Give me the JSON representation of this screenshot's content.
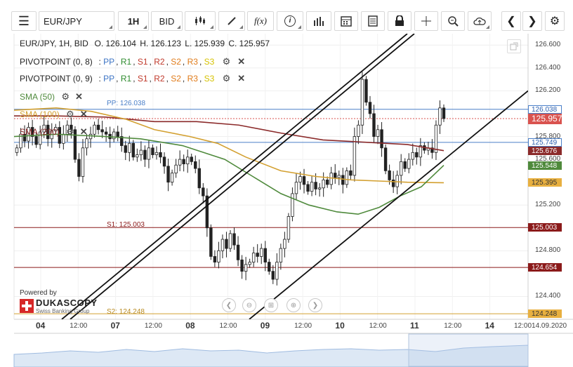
{
  "toolbar": {
    "symbol": "EUR/JPY",
    "timeframe": "1H",
    "price_type": "BID",
    "fx_label": "f(x)",
    "icons": [
      "menu-icon",
      "candle-type-icon",
      "draw-icon",
      "function-icon",
      "info-icon",
      "bar-chart-icon",
      "calendar-icon",
      "notes-icon",
      "lock-icon",
      "crosshair-icon",
      "zoom-icon",
      "cloud-upload-icon",
      "prev-icon",
      "next-icon",
      "settings-icon"
    ]
  },
  "ohlc": {
    "instrument": "EUR/JPY, 1H, BID",
    "o": "O. 126.104",
    "h": "H. 126.123",
    "l": "L. 125.939",
    "c": "C. 125.957"
  },
  "pivot_legends": [
    {
      "name": "PIVOTPOINT (0, 8)",
      "items": [
        "PP",
        "R1",
        "S1",
        "R2",
        "S2",
        "R3",
        "S3"
      ]
    },
    {
      "name": "PIVOTPOINT (0, 9)",
      "items": [
        "PP",
        "R1",
        "S1",
        "R2",
        "S2",
        "R3",
        "S3"
      ]
    }
  ],
  "sma_legends": [
    {
      "label": "SMA (50)",
      "color": "#4f8a3c"
    },
    {
      "label": "SMA (100)",
      "color": "#d3a030"
    },
    {
      "label": "SMA (200)",
      "color": "#8b2a2a"
    }
  ],
  "pivot_lines": {
    "pp": {
      "label": "PP: 126.038",
      "value": 126.038,
      "color": "#4a7fc8"
    },
    "s1": {
      "label": "S1: 125.003",
      "value": 125.003,
      "color": "#8b1a1a"
    },
    "s2": {
      "label": "S2: 124.248",
      "value": 124.248,
      "color": "#d3a030"
    },
    "pp_prev": {
      "value": 125.749,
      "color": "#4a7fc8"
    },
    "s1_prev": {
      "value": 124.654,
      "color": "#8b1a1a"
    }
  },
  "y_flags": [
    {
      "text": "126.038",
      "value": 126.038,
      "bg": "#ffffff",
      "fg": "#2a5fb0",
      "border": "#4a7fc8"
    },
    {
      "text": "125.957",
      "value": 125.957,
      "bg": "#d9534f",
      "fg": "#ffffff",
      "border": "#d9534f"
    },
    {
      "text": "125.749",
      "value": 125.749,
      "bg": "#ffffff",
      "fg": "#2a5fb0",
      "border": "#4a7fc8"
    },
    {
      "text": "125.676",
      "value": 125.676,
      "bg": "#8b2a2a",
      "fg": "#ffffff",
      "border": "#8b2a2a"
    },
    {
      "text": "125.548",
      "value": 125.548,
      "bg": "#4f8a3c",
      "fg": "#ffffff",
      "border": "#4f8a3c"
    },
    {
      "text": "125.395",
      "value": 125.395,
      "bg": "#e8b040",
      "fg": "#333333",
      "border": "#e8b040"
    },
    {
      "text": "125.003",
      "value": 125.003,
      "bg": "#8b1a1a",
      "fg": "#ffffff",
      "border": "#8b1a1a"
    },
    {
      "text": "124.654",
      "value": 124.654,
      "bg": "#8b1a1a",
      "fg": "#ffffff",
      "border": "#8b1a1a"
    },
    {
      "text": "124.248",
      "value": 124.248,
      "bg": "#e8b040",
      "fg": "#333333",
      "border": "#e8b040"
    }
  ],
  "logo": {
    "powered": "Powered by",
    "brand": "DUKASCOPY",
    "sub": "Swiss Banking Group"
  },
  "timestamp": "12:0014.09.2020",
  "chart_data": {
    "type": "candlestick",
    "ylim": [
      124.2,
      126.7
    ],
    "y_ticks": [
      "126.600",
      "126.400",
      "126.200",
      "125.800",
      "125.600",
      "125.200",
      "124.800",
      "124.400"
    ],
    "y_tick_values": [
      126.6,
      126.4,
      126.2,
      125.8,
      125.6,
      125.2,
      124.8,
      124.4
    ],
    "x_ticks": [
      {
        "label": "04",
        "day": true
      },
      {
        "label": "12:00",
        "day": false
      },
      {
        "label": "07",
        "day": true
      },
      {
        "label": "12:00",
        "day": false
      },
      {
        "label": "08",
        "day": true
      },
      {
        "label": "12:00",
        "day": false
      },
      {
        "label": "09",
        "day": true
      },
      {
        "label": "12:00",
        "day": false
      },
      {
        "label": "10",
        "day": true
      },
      {
        "label": "12:00",
        "day": false
      },
      {
        "label": "11",
        "day": true
      },
      {
        "label": "12:00",
        "day": false
      },
      {
        "label": "14",
        "day": true
      }
    ],
    "closes": [
      125.7,
      125.82,
      125.76,
      125.88,
      125.8,
      125.73,
      125.84,
      125.9,
      125.78,
      125.85,
      125.88,
      125.74,
      125.82,
      125.9,
      125.86,
      125.6,
      125.45,
      125.7,
      125.78,
      125.82,
      125.9,
      125.86,
      125.84,
      125.82,
      125.78,
      125.84,
      125.8,
      125.72,
      125.66,
      125.74,
      125.62,
      125.64,
      125.68,
      125.6,
      125.7,
      125.64,
      125.66,
      125.62,
      125.54,
      125.4,
      125.48,
      125.55,
      125.6,
      125.56,
      125.62,
      125.58,
      125.52,
      125.35,
      125.28,
      125.0,
      124.75,
      124.7,
      124.8,
      124.9,
      124.82,
      124.95,
      124.85,
      124.72,
      124.62,
      124.68,
      124.7,
      124.78,
      124.75,
      124.82,
      124.7,
      124.62,
      124.55,
      124.7,
      124.82,
      124.9,
      125.1,
      125.3,
      125.4,
      125.45,
      125.38,
      125.32,
      125.4,
      125.34,
      125.35,
      125.42,
      125.38,
      125.48,
      125.44,
      125.46,
      125.38,
      125.5,
      125.46,
      125.8,
      125.9,
      126.3,
      126.1,
      126.0,
      125.8,
      125.86,
      125.7,
      125.5,
      125.42,
      125.36,
      125.46,
      125.58,
      125.52,
      125.6,
      125.66,
      125.62,
      125.72,
      125.68,
      125.7,
      125.66,
      125.9,
      126.05,
      125.957
    ],
    "sma50": [
      [
        20,
        125.8
      ],
      [
        80,
        125.82
      ],
      [
        150,
        125.8
      ],
      [
        200,
        125.78
      ],
      [
        260,
        125.72
      ],
      [
        320,
        125.6
      ],
      [
        360,
        125.45
      ],
      [
        400,
        125.3
      ],
      [
        440,
        125.2
      ],
      [
        480,
        125.14
      ],
      [
        510,
        125.12
      ],
      [
        540,
        125.18
      ],
      [
        570,
        125.28
      ],
      [
        600,
        125.36
      ],
      [
        632,
        125.548
      ]
    ],
    "sma100": [
      [
        20,
        126.03
      ],
      [
        80,
        126.05
      ],
      [
        130,
        126.02
      ],
      [
        180,
        125.95
      ],
      [
        220,
        125.86
      ],
      [
        270,
        125.8
      ],
      [
        310,
        125.74
      ],
      [
        350,
        125.62
      ],
      [
        400,
        125.5
      ],
      [
        450,
        125.45
      ],
      [
        500,
        125.42
      ],
      [
        540,
        125.41
      ],
      [
        580,
        125.4
      ],
      [
        632,
        125.395
      ]
    ],
    "sma200": [
      [
        20,
        125.98
      ],
      [
        80,
        125.98
      ],
      [
        150,
        125.97
      ],
      [
        220,
        125.93
      ],
      [
        280,
        125.93
      ],
      [
        340,
        125.9
      ],
      [
        400,
        125.83
      ],
      [
        460,
        125.77
      ],
      [
        520,
        125.75
      ],
      [
        580,
        125.73
      ],
      [
        632,
        125.676
      ]
    ],
    "channel_upper": [
      [
        88,
        124.2
      ],
      [
        580,
        126.7
      ]
    ],
    "channel_lower": [
      [
        355,
        124.2
      ],
      [
        752,
        126.2
      ]
    ],
    "channel_mid": [
      [
        100,
        124.2
      ],
      [
        590,
        126.7
      ]
    ]
  }
}
